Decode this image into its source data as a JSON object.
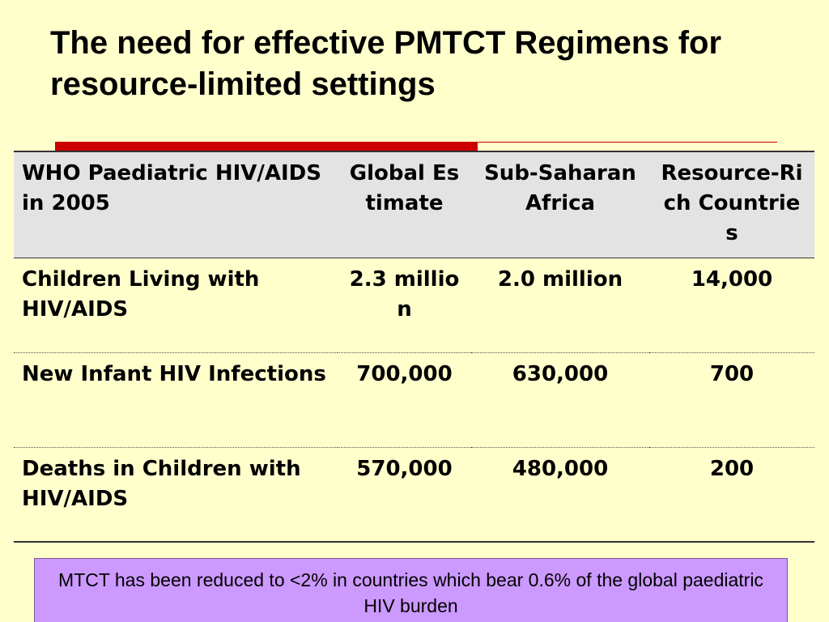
{
  "title": "The need for effective PMTCT Regimens for resource-limited settings",
  "table": {
    "headers": [
      "WHO Paediatric HIV/AIDS in 2005",
      "Global Estimate",
      "Sub-Saharan Africa",
      "Resource-Rich Countries"
    ],
    "rows": [
      [
        "Children Living with HIV/AIDS",
        "2.3 million",
        "2.0 million",
        "14,000"
      ],
      [
        "New Infant HIV Infections",
        "700,000",
        "630,000",
        "700"
      ],
      [
        "Deaths in Children with HIV/AIDS",
        "570,000",
        "480,000",
        "200"
      ]
    ]
  },
  "note": "MTCT has been reduced to <2% in countries which bear 0.6% of the global paediatric HIV burden",
  "colors": {
    "background": "#FFFFCC",
    "accent_rule": "#CC0000",
    "header_fill": "#E3E3E3",
    "note_fill": "#CC99FF"
  }
}
